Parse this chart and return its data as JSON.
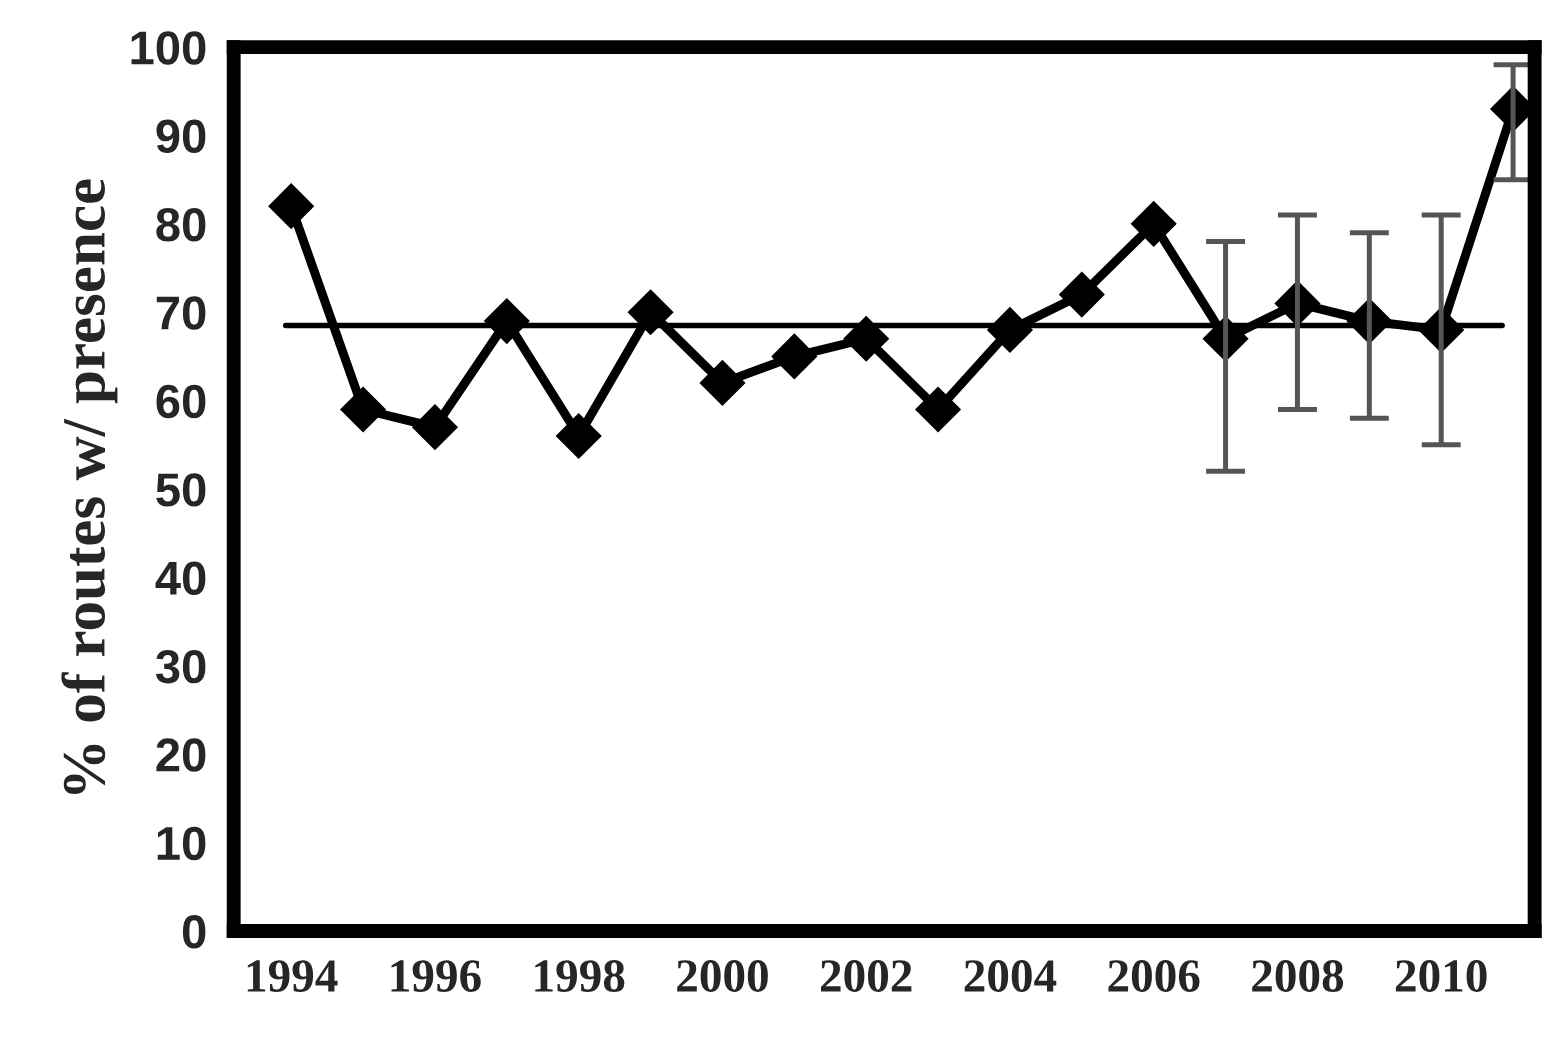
{
  "chart_data": {
    "type": "line",
    "ylabel": "% of routes w/ presence",
    "x": [
      1994,
      1995,
      1996,
      1997,
      1998,
      1999,
      2000,
      2001,
      2002,
      2003,
      2004,
      2005,
      2006,
      2007,
      2008,
      2009,
      2010,
      2011
    ],
    "series": [
      {
        "color": "#000000",
        "values": [
          82,
          59,
          57,
          69,
          56,
          70,
          62,
          65,
          67,
          59,
          68,
          72,
          80,
          67,
          71,
          69,
          68,
          93
        ],
        "errors": [
          null,
          null,
          null,
          null,
          null,
          null,
          null,
          null,
          null,
          null,
          null,
          null,
          null,
          [
            52,
            78
          ],
          [
            59,
            81
          ],
          [
            58,
            79
          ],
          [
            55,
            81
          ],
          [
            85,
            98
          ]
        ]
      }
    ],
    "marker": "diamond",
    "line_style": "solid",
    "grid": false,
    "legend": false,
    "xlim": [
      1993.2,
      2011.3
    ],
    "xticks": [
      1994,
      1996,
      1998,
      2000,
      2002,
      2004,
      2006,
      2008,
      2010
    ],
    "ylim": [
      0,
      100
    ],
    "yticks": [
      0,
      10,
      20,
      30,
      40,
      50,
      60,
      70,
      80,
      90,
      100
    ],
    "ref_lines": [
      {
        "axis": "y",
        "value": 68.5,
        "color": "#000000",
        "line_style": "solid"
      }
    ]
  }
}
